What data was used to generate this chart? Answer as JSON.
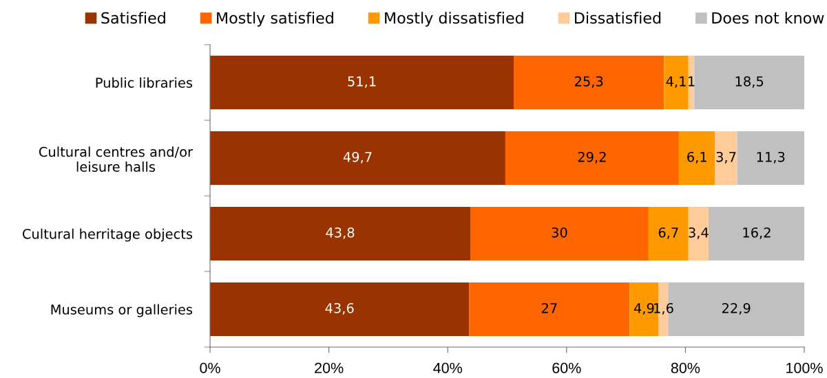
{
  "chart_data": {
    "type": "bar",
    "orientation": "horizontal",
    "stacked": true,
    "categories": [
      "Public libraries",
      "Cultural centres and/or\nleisure halls",
      "Cultural herritage objects",
      "Museums or galleries"
    ],
    "series": [
      {
        "name": "Satisfied",
        "color": "#993300",
        "values": [
          51.1,
          49.7,
          43.8,
          43.6
        ],
        "value_labels": [
          "51,1",
          "49,7",
          "43,8",
          "43,6"
        ]
      },
      {
        "name": "Mostly satisfied",
        "color": "#ff6600",
        "values": [
          25.3,
          29.2,
          30,
          27
        ],
        "value_labels": [
          "25,3",
          "29,2",
          "30",
          "27"
        ]
      },
      {
        "name": "Mostly dissatisfied",
        "color": "#ff9900",
        "values": [
          4.1,
          6.1,
          6.7,
          4.9
        ],
        "value_labels": [
          "4,1",
          "6,1",
          "6,7",
          "4,9"
        ]
      },
      {
        "name": "Dissatisfied",
        "color": "#ffcc99",
        "values": [
          1,
          3.7,
          3.4,
          1.6
        ],
        "value_labels": [
          "1",
          "3,7",
          "3,4",
          "1,6"
        ]
      },
      {
        "name": "Does not know",
        "color": "#c0c0c0",
        "values": [
          18.5,
          11.3,
          16.2,
          22.9
        ],
        "value_labels": [
          "18,5",
          "11,3",
          "16,2",
          "22,9"
        ]
      }
    ],
    "xlim": [
      0,
      100
    ],
    "xticks": [
      {
        "value": 0,
        "label": "0%"
      },
      {
        "value": 20,
        "label": "20%"
      },
      {
        "value": 40,
        "label": "40%"
      },
      {
        "value": 60,
        "label": "60%"
      },
      {
        "value": 80,
        "label": "80%"
      },
      {
        "value": 100,
        "label": "100%"
      }
    ],
    "grid": false,
    "legend": "top"
  }
}
